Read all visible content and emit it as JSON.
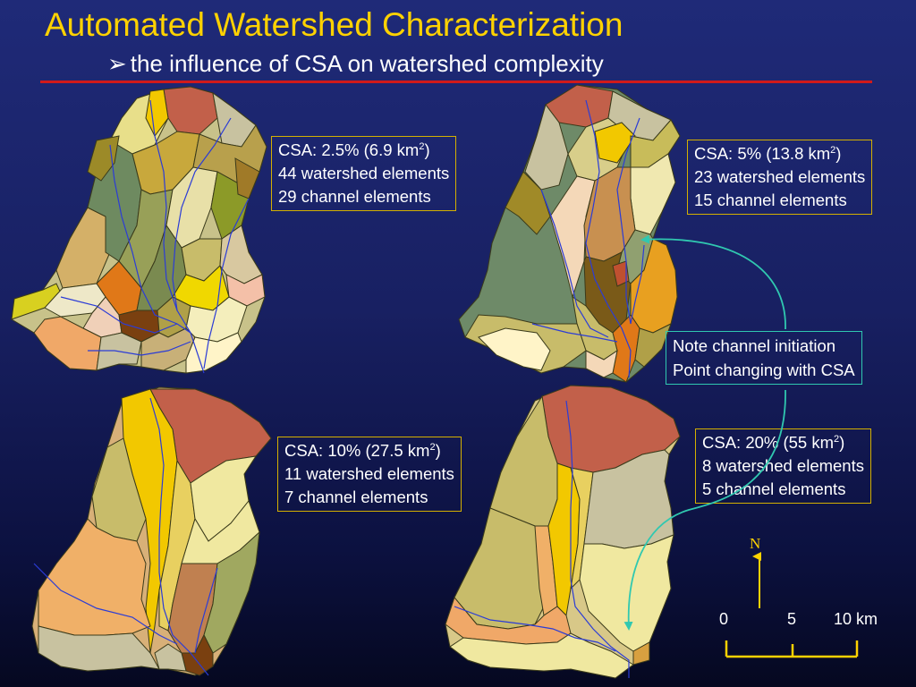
{
  "title": "Automated Watershed Characterization",
  "subtitle": "the influence of CSA on watershed complexity",
  "subtitle_bullet": "➢",
  "colors": {
    "title": "#ffd200",
    "rule": "#d11a1a",
    "box_border": "#d4b000",
    "note_border": "#30c8b0",
    "stream": "#2b3cd6"
  },
  "panels": [
    {
      "csa": "CSA: 2.5% (6.9 km",
      "csa_sup": "2",
      "csa_close": ")",
      "watershed": "44 watershed elements",
      "channel": "29 channel elements"
    },
    {
      "csa": "CSA: 5% (13.8 km",
      "csa_sup": "2",
      "csa_close": ")",
      "watershed": "23 watershed elements",
      "channel": "15 channel elements"
    },
    {
      "csa": "CSA: 10% (27.5 km",
      "csa_sup": "2",
      "csa_close": ")",
      "watershed": "11 watershed elements",
      "channel": "7   channel elements"
    },
    {
      "csa": "CSA: 20% (55 km",
      "csa_sup": "2",
      "csa_close": ")",
      "watershed": "8 watershed elements",
      "channel": "5 channel elements"
    }
  ],
  "note": {
    "line1": "Note channel initiation",
    "line2": "Point changing with CSA"
  },
  "north": "N",
  "scale": {
    "l0": "0",
    "l1": "5",
    "l2": "10 km"
  }
}
